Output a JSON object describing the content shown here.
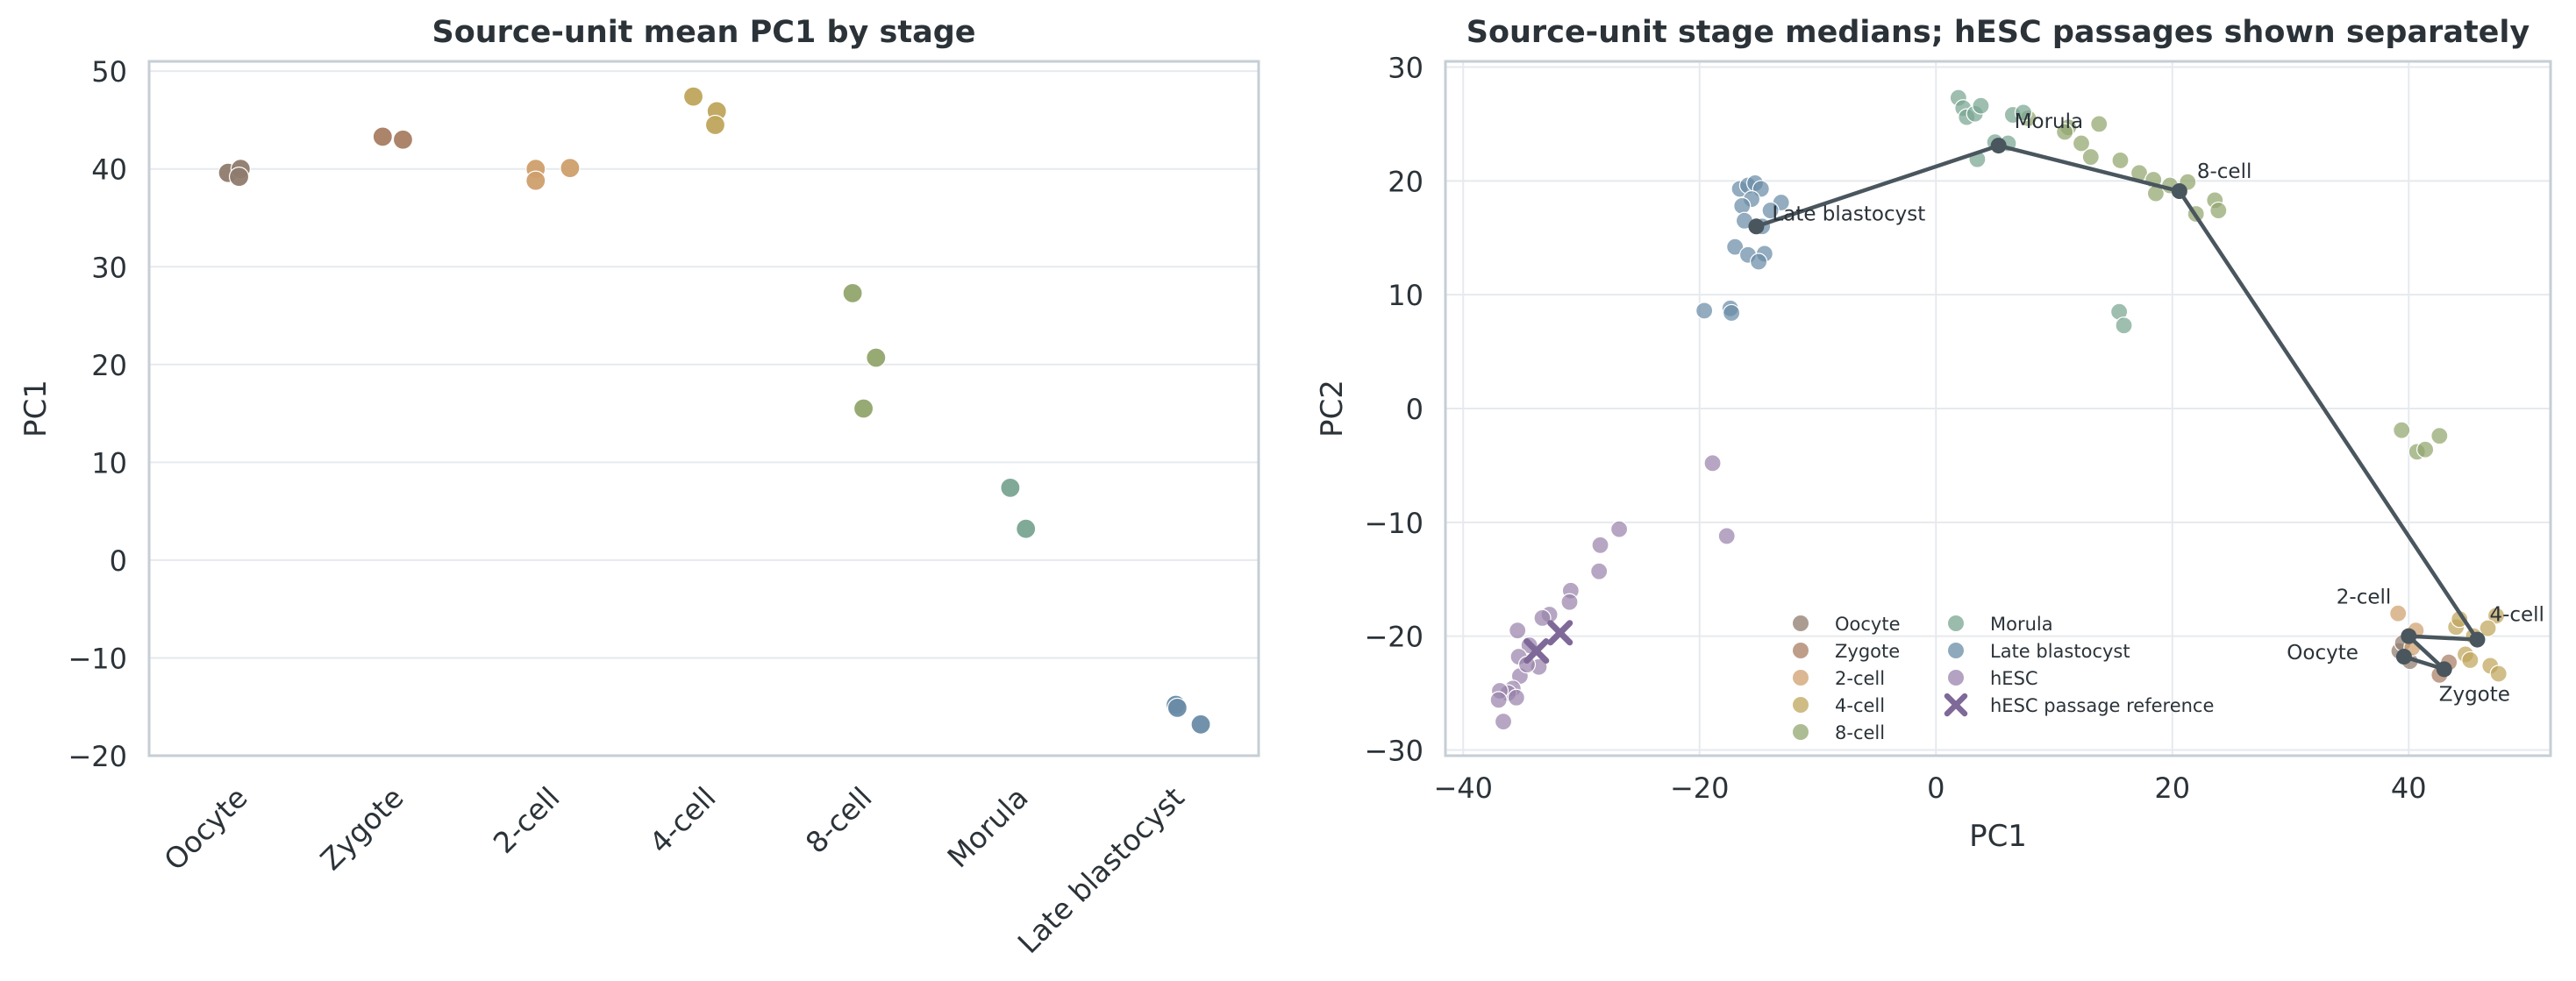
{
  "colors": {
    "Oocyte": "#8f7b6e",
    "Zygote": "#a87d62",
    "2-cell": "#cf9f6d",
    "4-cell": "#bfa55c",
    "8-cell": "#91a56d",
    "Morula": "#79a591",
    "Late blastocyst": "#6a8ca6",
    "hESC": "#9a83ac",
    "hESC passage reference": "#7f6998",
    "trajectory": "#4a565e"
  },
  "chart_data": [
    {
      "type": "scatter",
      "title": "Source-unit mean PC1 by stage",
      "xlabel": "",
      "ylabel": "PC1",
      "ylim": [
        -20,
        51
      ],
      "yticks": [
        -20,
        -10,
        0,
        10,
        20,
        30,
        40,
        50
      ],
      "ytick_labels": [
        "−20",
        "−10",
        "0",
        "10",
        "20",
        "30",
        "40",
        "50"
      ],
      "categories": [
        "Oocyte",
        "Zygote",
        "2-cell",
        "4-cell",
        "8-cell",
        "Morula",
        "Late blastocyst"
      ],
      "grid": true,
      "points": [
        {
          "stage": "Oocyte",
          "offset": -0.05,
          "y": 39.6
        },
        {
          "stage": "Oocyte",
          "offset": 0.03,
          "y": 40.0
        },
        {
          "stage": "Oocyte",
          "offset": 0.02,
          "y": 39.2
        },
        {
          "stage": "Zygote",
          "offset": -0.06,
          "y": 43.3
        },
        {
          "stage": "Zygote",
          "offset": 0.07,
          "y": 43.0
        },
        {
          "stage": "2-cell",
          "offset": -0.08,
          "y": 40.0
        },
        {
          "stage": "2-cell",
          "offset": -0.08,
          "y": 38.8
        },
        {
          "stage": "2-cell",
          "offset": 0.14,
          "y": 40.1
        },
        {
          "stage": "4-cell",
          "offset": -0.07,
          "y": 47.4
        },
        {
          "stage": "4-cell",
          "offset": 0.08,
          "y": 45.9
        },
        {
          "stage": "4-cell",
          "offset": 0.07,
          "y": 44.5
        },
        {
          "stage": "8-cell",
          "offset": -0.05,
          "y": 27.3
        },
        {
          "stage": "8-cell",
          "offset": 0.1,
          "y": 20.7
        },
        {
          "stage": "8-cell",
          "offset": 0.02,
          "y": 15.5
        },
        {
          "stage": "Morula",
          "offset": -0.04,
          "y": 7.4
        },
        {
          "stage": "Morula",
          "offset": 0.06,
          "y": 3.2
        },
        {
          "stage": "Late blastocyst",
          "offset": 0.02,
          "y": -14.8
        },
        {
          "stage": "Late blastocyst",
          "offset": 0.03,
          "y": -15.1
        },
        {
          "stage": "Late blastocyst",
          "offset": 0.18,
          "y": -16.8
        }
      ]
    },
    {
      "type": "scatter",
      "title": "Source-unit stage medians; hESC passages shown separately",
      "xlabel": "PC1",
      "ylabel": "PC2",
      "xlim": [
        -41.5,
        52
      ],
      "ylim": [
        -30.5,
        30.5
      ],
      "xticks": [
        -40,
        -20,
        0,
        20,
        40
      ],
      "xtick_labels": [
        "−40",
        "−20",
        "0",
        "20",
        "40"
      ],
      "yticks": [
        -30,
        -20,
        -10,
        0,
        10,
        20,
        30
      ],
      "ytick_labels": [
        "−30",
        "−20",
        "−10",
        "0",
        "10",
        "20",
        "30"
      ],
      "grid": true,
      "legend_position": "lower-center",
      "legend": [
        "Oocyte",
        "Zygote",
        "2-cell",
        "4-cell",
        "8-cell",
        "Morula",
        "Late blastocyst",
        "hESC",
        "hESC passage reference"
      ],
      "trajectory": [
        {
          "label": "Oocyte",
          "x": 39.6,
          "y": -21.8
        },
        {
          "label": "Zygote",
          "x": 43.0,
          "y": -22.9
        },
        {
          "label": "2-cell",
          "x": 40.0,
          "y": -20.0
        },
        {
          "label": "4-cell",
          "x": 45.8,
          "y": -20.3
        },
        {
          "label": "8-cell",
          "x": 20.6,
          "y": 19.1
        },
        {
          "label": "Morula",
          "x": 5.3,
          "y": 23.1
        },
        {
          "label": "Late blastocyst",
          "x": -15.2,
          "y": 16.0
        }
      ],
      "points": [
        {
          "stage": "Oocyte",
          "x": 39.2,
          "y": -21.3
        },
        {
          "stage": "Oocyte",
          "x": 40.1,
          "y": -22.2
        },
        {
          "stage": "Oocyte",
          "x": 39.5,
          "y": -20.6
        },
        {
          "stage": "Zygote",
          "x": 43.4,
          "y": -22.3
        },
        {
          "stage": "Zygote",
          "x": 42.6,
          "y": -23.4
        },
        {
          "stage": "2-cell",
          "x": 39.1,
          "y": -18.0
        },
        {
          "stage": "2-cell",
          "x": 40.6,
          "y": -19.5
        },
        {
          "stage": "2-cell",
          "x": 40.3,
          "y": -21.0
        },
        {
          "stage": "4-cell",
          "x": 44.8,
          "y": -21.6
        },
        {
          "stage": "4-cell",
          "x": 45.2,
          "y": -22.1
        },
        {
          "stage": "4-cell",
          "x": 47.4,
          "y": -18.2
        },
        {
          "stage": "4-cell",
          "x": 46.7,
          "y": -19.3
        },
        {
          "stage": "4-cell",
          "x": 46.9,
          "y": -22.6
        },
        {
          "stage": "4-cell",
          "x": 47.6,
          "y": -23.3
        },
        {
          "stage": "4-cell",
          "x": 44.0,
          "y": -19.2
        },
        {
          "stage": "4-cell",
          "x": 45.5,
          "y": -20.0
        },
        {
          "stage": "4-cell",
          "x": 44.3,
          "y": -18.5
        },
        {
          "stage": "8-cell",
          "x": 39.4,
          "y": -1.9
        },
        {
          "stage": "8-cell",
          "x": 40.7,
          "y": -3.8
        },
        {
          "stage": "8-cell",
          "x": 41.4,
          "y": -3.6
        },
        {
          "stage": "8-cell",
          "x": 42.6,
          "y": -2.4
        },
        {
          "stage": "8-cell",
          "x": 7.8,
          "y": 25.5
        },
        {
          "stage": "8-cell",
          "x": 11.2,
          "y": 24.7
        },
        {
          "stage": "8-cell",
          "x": 12.3,
          "y": 23.3
        },
        {
          "stage": "8-cell",
          "x": 13.1,
          "y": 22.1
        },
        {
          "stage": "8-cell",
          "x": 13.8,
          "y": 25.0
        },
        {
          "stage": "8-cell",
          "x": 15.6,
          "y": 21.8
        },
        {
          "stage": "8-cell",
          "x": 17.2,
          "y": 20.7
        },
        {
          "stage": "8-cell",
          "x": 18.4,
          "y": 20.1
        },
        {
          "stage": "8-cell",
          "x": 18.6,
          "y": 18.9
        },
        {
          "stage": "8-cell",
          "x": 19.8,
          "y": 19.6
        },
        {
          "stage": "8-cell",
          "x": 21.3,
          "y": 19.9
        },
        {
          "stage": "8-cell",
          "x": 22.0,
          "y": 17.1
        },
        {
          "stage": "8-cell",
          "x": 23.6,
          "y": 18.3
        },
        {
          "stage": "8-cell",
          "x": 23.9,
          "y": 17.4
        },
        {
          "stage": "8-cell",
          "x": 10.9,
          "y": 24.3
        },
        {
          "stage": "Morula",
          "x": 1.9,
          "y": 27.3
        },
        {
          "stage": "Morula",
          "x": 2.3,
          "y": 26.4
        },
        {
          "stage": "Morula",
          "x": 2.6,
          "y": 25.6
        },
        {
          "stage": "Morula",
          "x": 3.3,
          "y": 25.9
        },
        {
          "stage": "Morula",
          "x": 3.8,
          "y": 26.6
        },
        {
          "stage": "Morula",
          "x": 3.5,
          "y": 21.9
        },
        {
          "stage": "Morula",
          "x": 5.0,
          "y": 23.4
        },
        {
          "stage": "Morula",
          "x": 6.1,
          "y": 23.3
        },
        {
          "stage": "Morula",
          "x": 6.5,
          "y": 25.8
        },
        {
          "stage": "Morula",
          "x": 7.4,
          "y": 26.0
        },
        {
          "stage": "Morula",
          "x": 15.5,
          "y": 8.5
        },
        {
          "stage": "Morula",
          "x": 15.9,
          "y": 7.3
        },
        {
          "stage": "Late blastocyst",
          "x": -16.6,
          "y": 19.3
        },
        {
          "stage": "Late blastocyst",
          "x": -15.9,
          "y": 19.6
        },
        {
          "stage": "Late blastocyst",
          "x": -15.3,
          "y": 19.8
        },
        {
          "stage": "Late blastocyst",
          "x": -14.8,
          "y": 19.3
        },
        {
          "stage": "Late blastocyst",
          "x": -15.6,
          "y": 18.4
        },
        {
          "stage": "Late blastocyst",
          "x": -16.4,
          "y": 17.8
        },
        {
          "stage": "Late blastocyst",
          "x": -13.1,
          "y": 18.1
        },
        {
          "stage": "Late blastocyst",
          "x": -14.0,
          "y": 17.4
        },
        {
          "stage": "Late blastocyst",
          "x": -16.2,
          "y": 16.5
        },
        {
          "stage": "Late blastocyst",
          "x": -14.7,
          "y": 16.0
        },
        {
          "stage": "Late blastocyst",
          "x": -17.0,
          "y": 14.2
        },
        {
          "stage": "Late blastocyst",
          "x": -15.9,
          "y": 13.5
        },
        {
          "stage": "Late blastocyst",
          "x": -14.5,
          "y": 13.6
        },
        {
          "stage": "Late blastocyst",
          "x": -15.0,
          "y": 12.9
        },
        {
          "stage": "Late blastocyst",
          "x": -19.6,
          "y": 8.6
        },
        {
          "stage": "Late blastocyst",
          "x": -17.4,
          "y": 8.8
        },
        {
          "stage": "Late blastocyst",
          "x": -17.3,
          "y": 8.4
        },
        {
          "stage": "hESC",
          "x": -18.9,
          "y": -4.8
        },
        {
          "stage": "hESC",
          "x": -17.7,
          "y": -11.2
        },
        {
          "stage": "hESC",
          "x": -26.8,
          "y": -10.6
        },
        {
          "stage": "hESC",
          "x": -28.4,
          "y": -12.0
        },
        {
          "stage": "hESC",
          "x": -28.5,
          "y": -14.3
        },
        {
          "stage": "hESC",
          "x": -30.9,
          "y": -16.0
        },
        {
          "stage": "hESC",
          "x": -31.0,
          "y": -17.0
        },
        {
          "stage": "hESC",
          "x": -32.7,
          "y": -18.1
        },
        {
          "stage": "hESC",
          "x": -33.3,
          "y": -18.4
        },
        {
          "stage": "hESC",
          "x": -35.4,
          "y": -19.5
        },
        {
          "stage": "hESC",
          "x": -34.4,
          "y": -20.8
        },
        {
          "stage": "hESC",
          "x": -33.6,
          "y": -22.7
        },
        {
          "stage": "hESC",
          "x": -35.3,
          "y": -21.8
        },
        {
          "stage": "hESC",
          "x": -35.2,
          "y": -23.5
        },
        {
          "stage": "hESC",
          "x": -35.8,
          "y": -24.6
        },
        {
          "stage": "hESC",
          "x": -36.2,
          "y": -25.0
        },
        {
          "stage": "hESC",
          "x": -36.9,
          "y": -24.8
        },
        {
          "stage": "hESC",
          "x": -37.0,
          "y": -25.6
        },
        {
          "stage": "hESC",
          "x": -35.5,
          "y": -25.4
        },
        {
          "stage": "hESC",
          "x": -36.6,
          "y": -27.5
        },
        {
          "stage": "hESC",
          "x": -34.6,
          "y": -22.5
        }
      ],
      "references": [
        {
          "x": -33.8,
          "y": -21.3
        },
        {
          "x": -31.8,
          "y": -19.7
        }
      ]
    }
  ]
}
